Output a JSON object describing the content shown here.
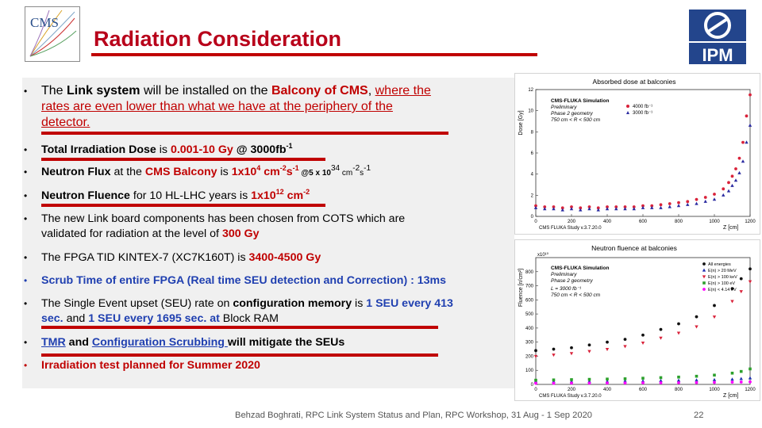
{
  "slide": {
    "title": "Radiation Consideration",
    "logos": {
      "left": "CMS",
      "right": "IPM"
    },
    "bullets": {
      "b1": {
        "p1": "The ",
        "p2": "Link system",
        "p3": " will be installed on the ",
        "p4": "Balcony of CMS",
        "p5": ", ",
        "p6": "where the",
        "line2": "rates are even lower than what we have at the periphery of the",
        "line3": "detector."
      },
      "b2": {
        "p1": "Total Irradiation Dose",
        "p2": " is ",
        "p3": "0.001-10 Gy",
        "p4": " @ 3000fb",
        "sup1": "-1"
      },
      "b3": {
        "p1": "Neutron Flux",
        "p2": " at the ",
        "p3": "CMS Balcony",
        "p4": " is ",
        "p5": "1x10",
        "sup1": "4",
        "p6": " cm",
        "sup2": "-2",
        "p7": "s",
        "sup3": "-1",
        "p8": " @5 x 10",
        "sup4": "34",
        "p9": " cm",
        "sup5": "-2",
        "p10": "s",
        "sup6": "-1"
      },
      "b4": {
        "p1": "Neutron Fluence",
        "p2": " for 10 HL-LHC years is ",
        "p3": "1x10",
        "sup1": "12",
        "p4": " cm",
        "sup2": "-2"
      },
      "b5": {
        "line1": "The new Link board components has been chosen from COTS which are",
        "line2a": "validated for radiation at the level of  ",
        "line2b": "300 Gy"
      },
      "b6": {
        "p1": "The FPGA TID KINTEX-7 (XC7K160T) is ",
        "p2": "3400-4500 Gy"
      },
      "b7": {
        "text": "Scrub Time of entire FPGA (Real time SEU detection and Correction) : 13ms"
      },
      "b8": {
        "p1": "The Single Event upset (SEU) rate on ",
        "p2": "configuration memory",
        "p3": " is  ",
        "p4": "1 SEU every 413",
        "p5": "sec.",
        "p6": " and ",
        "p7": "1 SEU every 1695 sec.",
        "p8": " at ",
        "p9": "Block RAM"
      },
      "b9": {
        "p1": "TMR",
        "p2": " and ",
        "p3": "Configuration Scrubbing ",
        "p4": "will mitigate the SEUs"
      },
      "b10": {
        "text": "Irradiation test planned for Summer 2020"
      }
    },
    "footer": "Behzad Boghrati, RPC Link System Status and Plan, RPC Workshop, 31 Aug - 1 Sep 2020",
    "page_number": "22"
  },
  "chart_data": [
    {
      "type": "scatter",
      "title": "Absorbed dose at balconies",
      "ylabel": "Dose [Gy]",
      "xlabel": "Z [cm]",
      "ylim": [
        0,
        12
      ],
      "xlim": [
        0,
        1200
      ],
      "xticks": [
        "0",
        "200",
        "400",
        "600",
        "800",
        "1000",
        "1200"
      ],
      "yticks": [
        "0",
        "2",
        "4",
        "6",
        "8",
        "10",
        "12"
      ],
      "annotation": [
        "CMS-FLUKA Simulation",
        "Preliminary",
        "Phase 2 geometry",
        "750 cm < R < 500 cm"
      ],
      "footnote": "CMS FLUKA Study v.3.7.20.0",
      "legend": [
        "4000 fb⁻¹",
        "3000 fb⁻¹"
      ],
      "colors": {
        "s1": "#d9223a",
        "s2": "#2a2aa0"
      },
      "series": [
        {
          "name": "4000 fb-1",
          "x": [
            0,
            50,
            100,
            150,
            200,
            250,
            300,
            350,
            400,
            450,
            500,
            550,
            600,
            650,
            700,
            750,
            800,
            850,
            900,
            950,
            1000,
            1050,
            1080,
            1100,
            1120,
            1140,
            1160,
            1180,
            1200
          ],
          "y": [
            1.0,
            0.9,
            0.9,
            0.8,
            0.9,
            0.8,
            0.9,
            0.8,
            0.9,
            0.9,
            0.9,
            0.9,
            1.0,
            1.0,
            1.1,
            1.2,
            1.3,
            1.4,
            1.6,
            1.8,
            2.1,
            2.6,
            3.2,
            3.8,
            4.5,
            5.5,
            7.0,
            9.5,
            11.5
          ]
        },
        {
          "name": "3000 fb-1",
          "x": [
            0,
            50,
            100,
            150,
            200,
            250,
            300,
            350,
            400,
            450,
            500,
            550,
            600,
            650,
            700,
            750,
            800,
            850,
            900,
            950,
            1000,
            1050,
            1080,
            1100,
            1120,
            1140,
            1160,
            1180,
            1200
          ],
          "y": [
            0.8,
            0.7,
            0.7,
            0.6,
            0.7,
            0.6,
            0.7,
            0.6,
            0.7,
            0.7,
            0.7,
            0.7,
            0.8,
            0.8,
            0.8,
            0.9,
            1.0,
            1.1,
            1.2,
            1.4,
            1.6,
            2.0,
            2.4,
            2.9,
            3.4,
            4.1,
            5.2,
            7.0,
            8.6
          ]
        }
      ]
    },
    {
      "type": "scatter",
      "title": "Neutron fluence at balconies",
      "ylabel": "Fluence [n/cm²]",
      "xlabel": "Z [cm]",
      "ylim": [
        0,
        900
      ],
      "xlim": [
        0,
        1200
      ],
      "yunit": "x10¹⁰",
      "xticks": [
        "0",
        "200",
        "400",
        "600",
        "800",
        "1000",
        "1200"
      ],
      "yticks": [
        "0",
        "100",
        "200",
        "300",
        "400",
        "500",
        "600",
        "700",
        "800"
      ],
      "annotation": [
        "CMS-FLUKA Simulation",
        "Preliminary",
        "Phase 2 geometry",
        "L = 3000 fb⁻¹",
        "750 cm < R < 500 cm"
      ],
      "footnote": "CMS FLUKA Study v.3.7.20.0",
      "legend": [
        "All energies",
        "E(n) > 20 MeV",
        "E(n) > 100 keV",
        "E(n) > 100 eV",
        "E(n) < 4.14 eV"
      ],
      "colors": {
        "s1": "#111111",
        "s2": "#1f2fb0",
        "s3": "#d9223a",
        "s4": "#2ca02c",
        "s5": "#ff00ff"
      },
      "series": [
        {
          "name": "All energies",
          "x": [
            0,
            100,
            200,
            300,
            400,
            500,
            600,
            700,
            800,
            900,
            1000,
            1100,
            1150,
            1200
          ],
          "y": [
            240,
            250,
            260,
            280,
            300,
            320,
            350,
            390,
            430,
            480,
            560,
            680,
            750,
            820
          ]
        },
        {
          "name": "E(n) > 20 MeV",
          "x": [
            0,
            100,
            200,
            300,
            400,
            500,
            600,
            700,
            800,
            900,
            1000,
            1100,
            1150,
            1200
          ],
          "y": [
            20,
            20,
            20,
            22,
            22,
            24,
            24,
            26,
            28,
            30,
            32,
            36,
            40,
            45
          ]
        },
        {
          "name": "E(n) > 100 keV",
          "x": [
            0,
            100,
            200,
            300,
            400,
            500,
            600,
            700,
            800,
            900,
            1000,
            1100,
            1150,
            1200
          ],
          "y": [
            200,
            210,
            220,
            235,
            250,
            270,
            295,
            330,
            365,
            410,
            480,
            590,
            660,
            730
          ]
        },
        {
          "name": "E(n) > 100 eV",
          "x": [
            0,
            100,
            200,
            300,
            400,
            500,
            600,
            700,
            800,
            900,
            1000,
            1100,
            1150,
            1200
          ],
          "y": [
            30,
            32,
            34,
            36,
            38,
            40,
            44,
            48,
            52,
            58,
            66,
            80,
            92,
            110
          ]
        },
        {
          "name": "E(n) < 4.14 eV",
          "x": [
            0,
            100,
            200,
            300,
            400,
            500,
            600,
            700,
            800,
            900,
            1000,
            1100,
            1150,
            1200
          ],
          "y": [
            8,
            8,
            9,
            9,
            10,
            10,
            11,
            11,
            12,
            13,
            14,
            16,
            17,
            18
          ]
        }
      ]
    }
  ]
}
